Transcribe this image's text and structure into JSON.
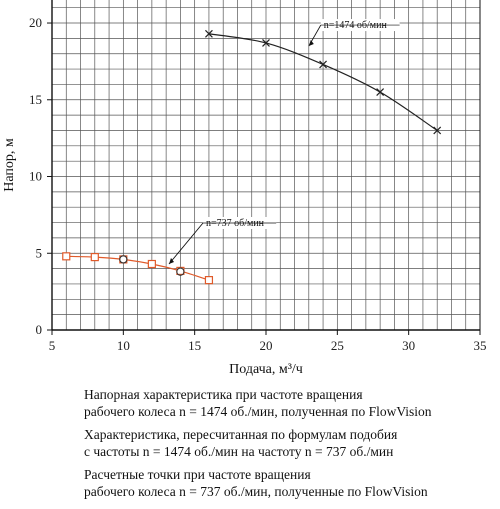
{
  "chart_data": {
    "type": "line",
    "xlabel": "Подача, м³/ч",
    "ylabel": "Напор, м",
    "xlim": [
      5,
      35
    ],
    "ylim": [
      0,
      21.5
    ],
    "xticks": [
      5,
      10,
      15,
      20,
      25,
      30,
      35
    ],
    "yticks": [
      0,
      5,
      10,
      15,
      20
    ],
    "grid": true,
    "series": [
      {
        "name": "n=1474 об/мин",
        "color": "#222222",
        "marker": "x",
        "x": [
          16,
          20,
          24,
          28,
          32
        ],
        "y": [
          19.3,
          18.7,
          17.3,
          15.5,
          13.0
        ]
      },
      {
        "name": "n=737 об/мин",
        "color": "#e05a2a",
        "marker": "square",
        "x": [
          6,
          8,
          10,
          12,
          14,
          16
        ],
        "y": [
          4.8,
          4.75,
          4.6,
          4.3,
          3.85,
          3.25
        ]
      },
      {
        "marker": "circle",
        "color": "#333333",
        "x": [
          10,
          14
        ],
        "y": [
          4.6,
          3.8
        ]
      }
    ],
    "annotations": [
      {
        "text": "n=1474 об/мин",
        "x": 23,
        "y": 18.5
      },
      {
        "text": "n=737 об/мин",
        "x": 13.2,
        "y": 4.3
      }
    ]
  },
  "legend": {
    "items": [
      {
        "line1": "Напорная характеристика при частоте вращения",
        "line2": "рабочего колеса n = 1474 об./мин, полученная по FlowVision"
      },
      {
        "line1": "Характеристика, пересчитанная по формулам подобия",
        "line2": "с частоты n = 1474 об./мин на частоту n = 737 об./мин"
      },
      {
        "line1": "Расчетные точки при частоте вращения",
        "line2": "рабочего колеса n = 737 об./мин, полученные по FlowVision"
      }
    ]
  }
}
